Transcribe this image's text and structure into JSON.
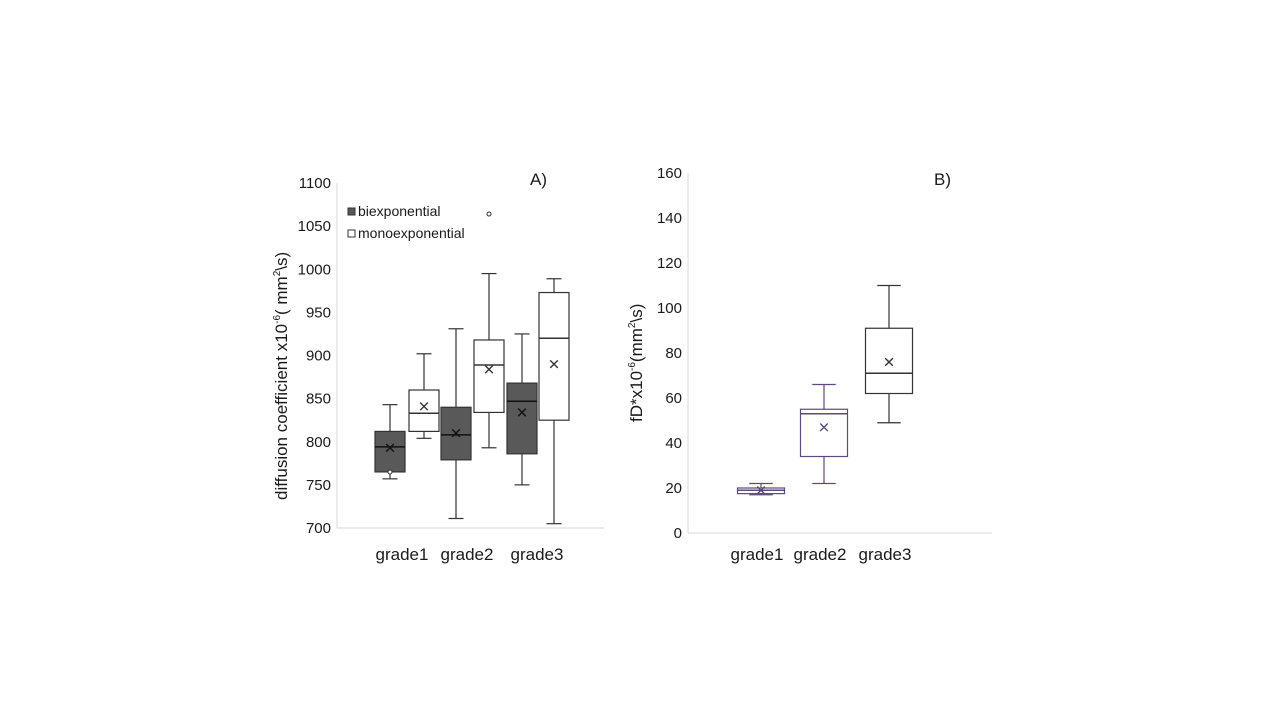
{
  "chart_data": [
    {
      "type": "box",
      "panel_label": "A)",
      "title": "",
      "xlabel": "",
      "ylabel": {
        "pre": "diffusion coefficient x10",
        "sup1": "-6",
        "mid": "( mm",
        "sup2": "2",
        "post": "\\s)"
      },
      "ylim": [
        700,
        1100
      ],
      "yticks": [
        "700",
        "750",
        "800",
        "850",
        "900",
        "950",
        "1000",
        "1050",
        "1100"
      ],
      "categories": [
        "grade1",
        "grade2",
        "grade3"
      ],
      "legend": [
        {
          "label": "biexponential",
          "fill": "#595959"
        },
        {
          "label": "monoexponential",
          "fill": "#ffffff"
        }
      ],
      "series": [
        {
          "name": "biexponential",
          "fill": "#595959",
          "boxes": [
            {
              "min": 757,
              "q1": 765,
              "median": 794,
              "q3": 812,
              "max": 843,
              "mean": 793,
              "outliers": [
                765
              ]
            },
            {
              "min": 711,
              "q1": 779,
              "median": 808,
              "q3": 840,
              "max": 931,
              "mean": 810,
              "outliers": []
            },
            {
              "min": 750,
              "q1": 786,
              "median": 847,
              "q3": 868,
              "max": 925,
              "mean": 834,
              "outliers": []
            }
          ]
        },
        {
          "name": "monoexponential",
          "fill": "#ffffff",
          "boxes": [
            {
              "min": 804,
              "q1": 812,
              "median": 833,
              "q3": 860,
              "max": 902,
              "mean": 841,
              "outliers": []
            },
            {
              "min": 793,
              "q1": 834,
              "median": 889,
              "q3": 918,
              "max": 995,
              "mean": 884,
              "outliers": [
                1064
              ]
            },
            {
              "min": 705,
              "q1": 825,
              "median": 920,
              "q3": 973,
              "max": 989,
              "mean": 890,
              "outliers": []
            }
          ]
        }
      ]
    },
    {
      "type": "box",
      "panel_label": "B)",
      "title": "",
      "xlabel": "",
      "ylabel": {
        "pre": "fD*x10",
        "sup1": "-6",
        "mid": "(mm",
        "sup2": "2",
        "post": "\\s)"
      },
      "ylim": [
        0,
        160
      ],
      "yticks": [
        "0",
        "20",
        "40",
        "60",
        "80",
        "100",
        "120",
        "140",
        "160"
      ],
      "categories": [
        "grade1",
        "grade2",
        "grade3"
      ],
      "series": [
        {
          "name": "fD*",
          "boxes": [
            {
              "min": 17,
              "q1": 17.5,
              "median": 19,
              "q3": 20,
              "max": 22,
              "mean": 19,
              "outliers": [],
              "stroke": "#5b4a7a"
            },
            {
              "min": 22,
              "q1": 34,
              "median": 53,
              "q3": 55,
              "max": 66,
              "mean": 47,
              "outliers": [],
              "stroke": "#5b4a7a"
            },
            {
              "min": 49,
              "q1": 62,
              "median": 71,
              "q3": 91,
              "max": 110,
              "mean": 76,
              "outliers": [],
              "stroke": "#333333"
            }
          ]
        }
      ]
    }
  ]
}
